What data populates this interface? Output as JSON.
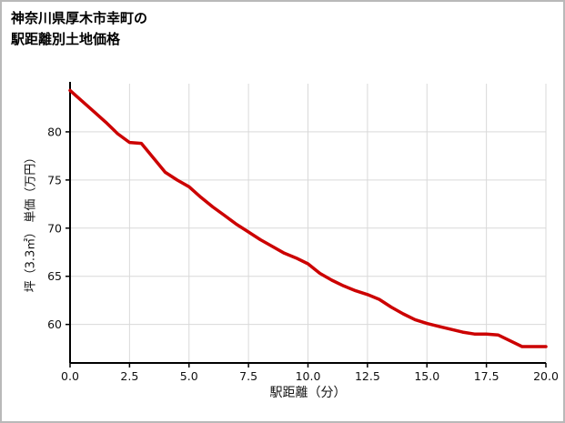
{
  "title": {
    "line1": "神奈川県厚木市幸町の",
    "line2": "駅距離別土地価格"
  },
  "chart_data": {
    "type": "line",
    "title": "神奈川県厚木市幸町の駅距離別土地価格",
    "xlabel": "駅距離（分）",
    "ylabel": "坪（3.3㎡） 単価（万円）",
    "legend": null,
    "grid": true,
    "grid_color": "#d9d9d9",
    "axis_color": "#000000",
    "line_color": "#cc0000",
    "xlim": [
      0,
      20
    ],
    "ylim": [
      56,
      85
    ],
    "xticks": [
      0,
      2.5,
      5,
      7.5,
      10,
      12.5,
      15,
      17.5,
      20
    ],
    "xtick_labels": [
      "0.0",
      "2.5",
      "5.0",
      "7.5",
      "10.0",
      "12.5",
      "15.0",
      "17.5",
      "20.0"
    ],
    "yticks": [
      60,
      65,
      70,
      75,
      80
    ],
    "ytick_labels": [
      "60",
      "65",
      "70",
      "75",
      "80"
    ],
    "x": [
      0,
      0.5,
      1,
      1.5,
      2,
      2.5,
      3,
      3.5,
      4,
      4.5,
      5,
      5.5,
      6,
      6.5,
      7,
      7.5,
      8,
      8.5,
      9,
      9.5,
      10,
      10.5,
      11,
      11.5,
      12,
      12.5,
      13,
      13.5,
      14,
      14.5,
      15,
      15.5,
      16,
      16.5,
      17,
      17.5,
      18,
      18.5,
      19,
      19.5,
      20
    ],
    "y": [
      84.3,
      83.2,
      82.1,
      81.0,
      79.8,
      78.9,
      78.8,
      77.3,
      75.8,
      75.0,
      74.3,
      73.2,
      72.2,
      71.3,
      70.4,
      69.6,
      68.8,
      68.1,
      67.4,
      66.9,
      66.3,
      65.3,
      64.6,
      64.0,
      63.5,
      63.1,
      62.6,
      61.8,
      61.1,
      60.5,
      60.1,
      59.8,
      59.5,
      59.2,
      59.0,
      59.0,
      58.9,
      58.3,
      57.7,
      57.7,
      57.7
    ]
  }
}
